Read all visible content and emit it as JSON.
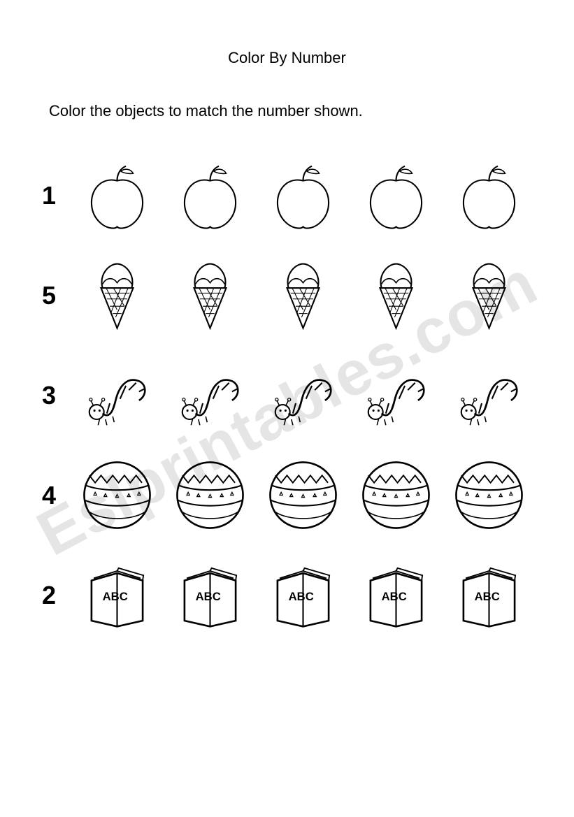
{
  "title": "Color By Number",
  "instruction": "Color the objects to match the number shown.",
  "watermark": "Eslprintables.com",
  "rows": [
    {
      "number": "1",
      "icon": "apple",
      "count": 5
    },
    {
      "number": "5",
      "icon": "icecream",
      "count": 5
    },
    {
      "number": "3",
      "icon": "worm",
      "count": 5
    },
    {
      "number": "4",
      "icon": "ball",
      "count": 5
    },
    {
      "number": "2",
      "icon": "book",
      "count": 5,
      "label": "ABC"
    }
  ],
  "style": {
    "page_background": "#ffffff",
    "text_color": "#000000",
    "title_fontsize": 22,
    "instruction_fontsize": 22,
    "number_fontsize": 36,
    "number_fontweight": 700,
    "row_gap": 28,
    "item_gap": 18,
    "item_size": 115,
    "stroke_color": "#000000",
    "stroke_width": 2,
    "watermark_color": "rgba(0,0,0,0.10)",
    "watermark_fontsize": 90,
    "watermark_rotation_deg": -28
  }
}
